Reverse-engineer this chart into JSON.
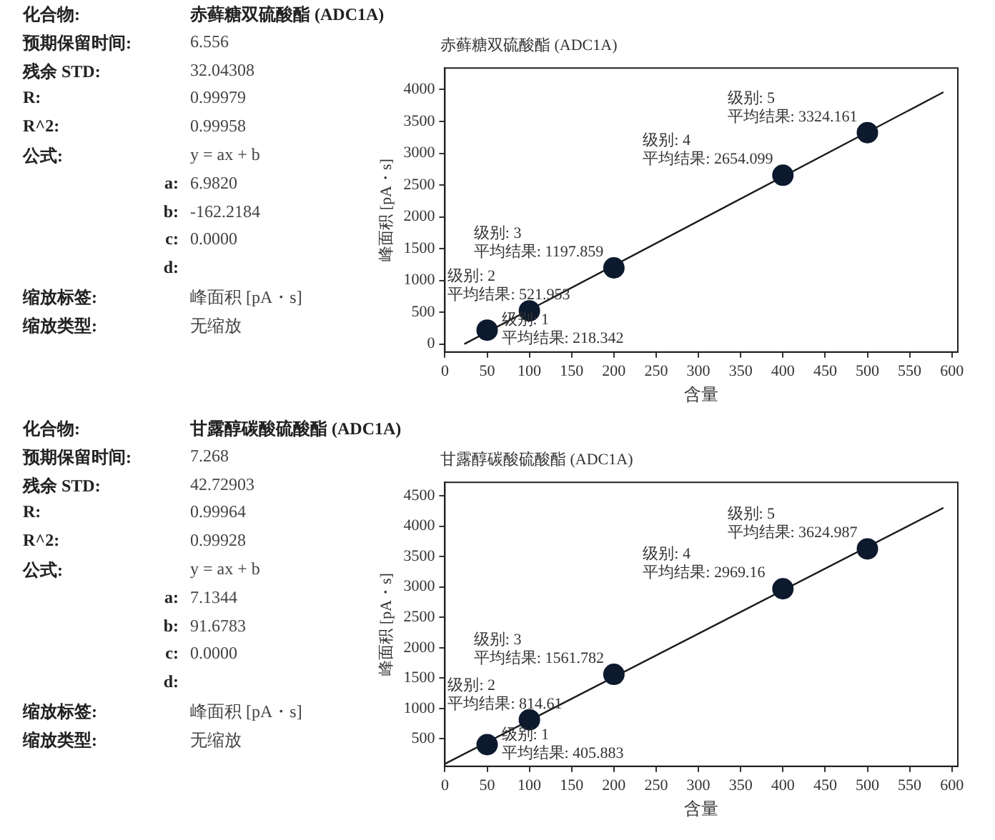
{
  "chart_data": [
    {
      "type": "other",
      "annotations": [
        "化合物:",
        "赤藓糖双硫酸酯 (ADC1A)",
        "预期保留时间:",
        "6.556",
        "残余 STD:",
        "32.04308",
        "R:",
        "0.99979",
        "R^2:",
        "0.99958",
        "公式:",
        "y = ax + b",
        "a:",
        "6.9820",
        "b:",
        "-162.2184",
        "c:",
        "0.0000",
        "d:",
        "缩放标签:",
        "峰面积 [pA・s]",
        "缩放类型:",
        "无缩放"
      ]
    },
    {
      "type": "scatter",
      "title": "赤藓糖双硫酸酯 (ADC1A)",
      "xlabel": "含量",
      "ylabel": "峰面积 [pA・s]",
      "xlim": [
        0,
        607
      ],
      "xticks": [
        0,
        50,
        100,
        150,
        200,
        250,
        300,
        350,
        400,
        450,
        500,
        550,
        600
      ],
      "ylim": [
        -125,
        4340
      ],
      "yticks": [
        0,
        500,
        1000,
        1500,
        2000,
        2500,
        3000,
        3500,
        4000
      ],
      "series": [
        {
          "type": "scatter",
          "marker": "circle",
          "color": "#0d1a2e",
          "x": [
            50,
            100,
            200,
            400,
            500
          ],
          "values": [
            218.342,
            521.953,
            1197.859,
            2654.099,
            3324.161
          ]
        },
        {
          "type": "line",
          "marker": "none",
          "color": "#1a1a1a",
          "x": [
            23,
            590
          ],
          "values": [
            0,
            3960
          ]
        }
      ],
      "annotations": [
        {
          "text": "级别: 1\n平均结果: 218.342",
          "x": 50,
          "y": 218.342
        },
        {
          "text": "级别: 2\n平均结果: 521.953",
          "x": 100,
          "y": 521.953
        },
        {
          "text": "级别: 3\n平均结果: 1197.859",
          "x": 200,
          "y": 1197.859
        },
        {
          "text": "级别: 4\n平均结果: 2654.099",
          "x": 400,
          "y": 2654.099
        },
        {
          "text": "级别: 5\n平均结果: 3324.161",
          "x": 500,
          "y": 3324.161
        }
      ]
    },
    {
      "type": "other",
      "annotations": [
        "化合物:",
        "甘露醇碳酸硫酸酯 (ADC1A)",
        "预期保留时间:",
        "7.268",
        "残余 STD:",
        "42.72903",
        "R:",
        "0.99964",
        "R^2:",
        "0.99928",
        "公式:",
        "y = ax + b",
        "a:",
        "7.1344",
        "b:",
        "91.6783",
        "c:",
        "0.0000",
        "d:",
        "缩放标签:",
        "峰面积 [pA・s]",
        "缩放类型:",
        "无缩放"
      ]
    },
    {
      "type": "scatter",
      "title": "甘露醇碳酸硫酸酯 (ADC1A)",
      "xlabel": "含量",
      "ylabel": "峰面积 [pA・s]",
      "xlim": [
        0,
        607
      ],
      "xticks": [
        0,
        50,
        100,
        150,
        200,
        250,
        300,
        350,
        400,
        450,
        500,
        550,
        600
      ],
      "ylim": [
        50,
        4720
      ],
      "yticks": [
        500,
        1000,
        1500,
        2000,
        2500,
        3000,
        3500,
        4000,
        4500
      ],
      "series": [
        {
          "type": "scatter",
          "marker": "circle",
          "color": "#0d1a2e",
          "x": [
            50,
            100,
            200,
            400,
            500
          ],
          "values": [
            405.883,
            814.61,
            1561.782,
            2969.16,
            3624.987
          ]
        },
        {
          "type": "line",
          "marker": "none",
          "color": "#1a1a1a",
          "x": [
            0,
            590
          ],
          "values": [
            90,
            4300
          ]
        }
      ],
      "annotations": [
        {
          "text": "级别: 1\n平均结果: 405.883",
          "x": 50,
          "y": 405.883
        },
        {
          "text": "级别: 2\n平均结果: 814.61",
          "x": 100,
          "y": 814.61
        },
        {
          "text": "级别: 3\n平均结果: 1561.782",
          "x": 200,
          "y": 1561.782
        },
        {
          "text": "级别: 4\n平均结果: 2969.16",
          "x": 400,
          "y": 2969.16
        },
        {
          "text": "级别: 5\n平均结果: 3624.987",
          "x": 500,
          "y": 3624.987
        }
      ]
    }
  ]
}
